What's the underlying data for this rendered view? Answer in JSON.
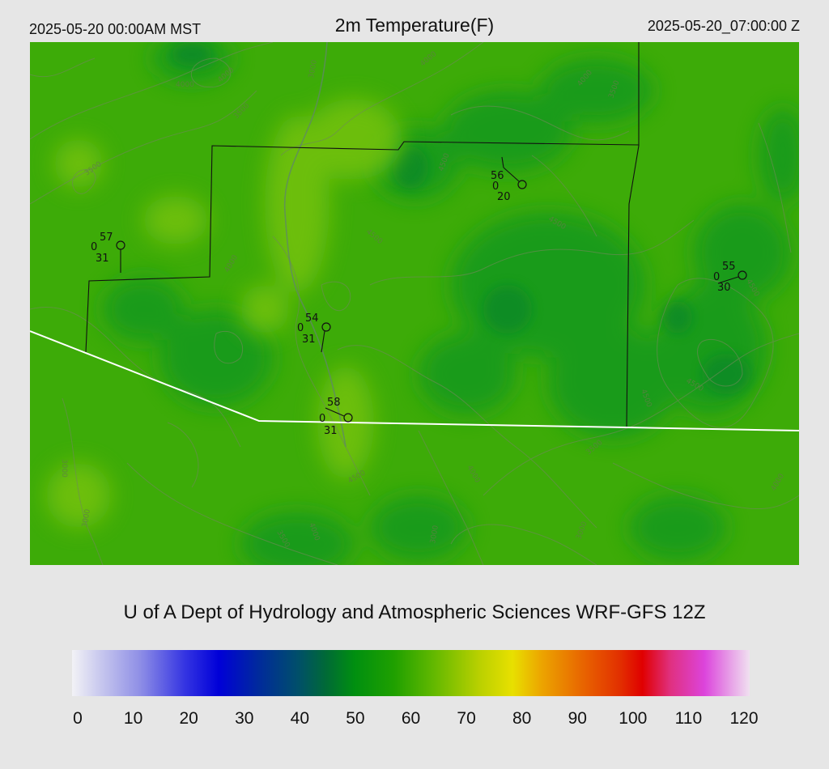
{
  "header": {
    "local_time": "2025-05-20 00:00AM MST",
    "title": "2m Temperature(F)",
    "utc_time": "2025-05-20_07:00:00 Z"
  },
  "credit": "U of A Dept of Hydrology and Atmospheric Sciences WRF-GFS 12Z",
  "colorbar": {
    "ticks": [
      "0",
      "10",
      "20",
      "30",
      "40",
      "50",
      "60",
      "70",
      "80",
      "90",
      "100",
      "110",
      "120"
    ],
    "stops": [
      {
        "v": 0,
        "c": "#f2f2f6"
      },
      {
        "v": 5,
        "c": "#c8c8ee"
      },
      {
        "v": 12,
        "c": "#8f8fe6"
      },
      {
        "v": 20,
        "c": "#3434e2"
      },
      {
        "v": 26,
        "c": "#0000d8"
      },
      {
        "v": 33,
        "c": "#002a9c"
      },
      {
        "v": 40,
        "c": "#004f6a"
      },
      {
        "v": 45,
        "c": "#006a36"
      },
      {
        "v": 50,
        "c": "#008f10"
      },
      {
        "v": 57,
        "c": "#1fa000"
      },
      {
        "v": 64,
        "c": "#62b800"
      },
      {
        "v": 72,
        "c": "#b8d000"
      },
      {
        "v": 78,
        "c": "#e8e000"
      },
      {
        "v": 83,
        "c": "#eca600"
      },
      {
        "v": 91,
        "c": "#e86000"
      },
      {
        "v": 97,
        "c": "#e23000"
      },
      {
        "v": 101,
        "c": "#e00000"
      },
      {
        "v": 106,
        "c": "#e03080"
      },
      {
        "v": 112,
        "c": "#dc44dc"
      },
      {
        "v": 117,
        "c": "#e8a8e8"
      },
      {
        "v": 120,
        "c": "#f0e0f0"
      }
    ]
  },
  "map": {
    "stations": [
      {
        "temp": "57",
        "dew": "31",
        "gust": "0"
      },
      {
        "temp": "56",
        "dew": "20",
        "gust": "0"
      },
      {
        "temp": "55",
        "dew": "30",
        "gust": "0"
      },
      {
        "temp": "54",
        "dew": "31",
        "gust": "0"
      },
      {
        "temp": "58",
        "dew": "31",
        "gust": "0"
      }
    ],
    "contour_labels": [
      "4000",
      "4000",
      "3000",
      "4000",
      "3500",
      "3500",
      "4500",
      "4500",
      "4500",
      "4000",
      "3500",
      "4000",
      "4500",
      "4500",
      "4500",
      "3000",
      "3500",
      "3000",
      "3000",
      "4000",
      "4500",
      "3500",
      "4000",
      "4000",
      "3000"
    ]
  }
}
